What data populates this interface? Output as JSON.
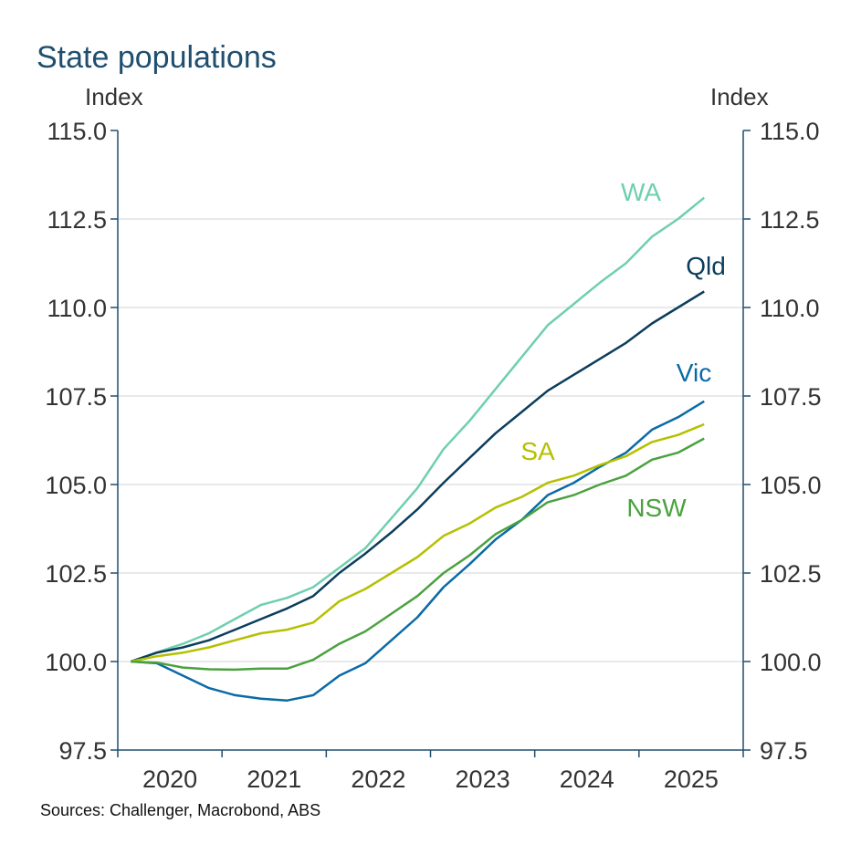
{
  "chart_data": {
    "type": "line",
    "title": "State populations",
    "ylabel_left": "Index",
    "ylabel_right": "Index",
    "source": "Sources: Challenger, Macrobond, ABS",
    "ylim": [
      97.5,
      115.0
    ],
    "yticks": [
      "97.5",
      "100.0",
      "102.5",
      "105.0",
      "107.5",
      "110.0",
      "112.5",
      "115.0"
    ],
    "xticks": [
      "2020",
      "2021",
      "2022",
      "2023",
      "2024",
      "2025"
    ],
    "x": [
      "2020 Q1",
      "2020 Q2",
      "2020 Q3",
      "2020 Q4",
      "2021 Q1",
      "2021 Q2",
      "2021 Q3",
      "2021 Q4",
      "2022 Q1",
      "2022 Q2",
      "2022 Q3",
      "2022 Q4",
      "2023 Q1",
      "2023 Q2",
      "2023 Q3",
      "2023 Q4",
      "2024 Q1",
      "2024 Q2",
      "2024 Q3",
      "2024 Q4",
      "2025 Q1",
      "2025 Q2",
      "2025 Q3"
    ],
    "grid": true,
    "series": [
      {
        "name": "WA",
        "color": "#6fcfb0",
        "values": [
          100,
          100.26,
          100.5,
          100.8,
          101.2,
          101.6,
          101.8,
          102.1,
          102.65,
          103.2,
          104.05,
          104.9,
          106.0,
          106.8,
          107.7,
          108.6,
          109.5,
          110.1,
          110.7,
          111.25,
          112.0,
          112.5,
          113.1
        ]
      },
      {
        "name": "Qld",
        "color": "#0b3d5c",
        "values": [
          100,
          100.25,
          100.4,
          100.6,
          100.9,
          101.2,
          101.5,
          101.85,
          102.5,
          103.05,
          103.65,
          104.3,
          105.05,
          105.75,
          106.45,
          107.05,
          107.65,
          108.1,
          108.55,
          109.0,
          109.55,
          110.0,
          110.45
        ]
      },
      {
        "name": "Vic",
        "color": "#0a6aa6",
        "values": [
          100,
          99.95,
          99.6,
          99.25,
          99.05,
          98.95,
          98.9,
          99.05,
          99.6,
          99.95,
          100.6,
          101.25,
          102.1,
          102.75,
          103.45,
          104.0,
          104.7,
          105.05,
          105.5,
          105.9,
          106.55,
          106.9,
          107.35
        ]
      },
      {
        "name": "SA",
        "color": "#b5c000",
        "values": [
          100,
          100.15,
          100.25,
          100.4,
          100.6,
          100.8,
          100.9,
          101.1,
          101.7,
          102.05,
          102.5,
          102.95,
          103.55,
          103.9,
          104.35,
          104.65,
          105.05,
          105.25,
          105.55,
          105.8,
          106.2,
          106.4,
          106.7
        ]
      },
      {
        "name": "NSW",
        "color": "#4aa23e",
        "values": [
          100,
          99.97,
          99.83,
          99.78,
          99.77,
          99.8,
          99.8,
          100.05,
          100.5,
          100.85,
          101.35,
          101.85,
          102.5,
          103.0,
          103.6,
          104.0,
          104.5,
          104.7,
          105.0,
          105.25,
          105.7,
          105.9,
          106.3
        ]
      }
    ]
  }
}
